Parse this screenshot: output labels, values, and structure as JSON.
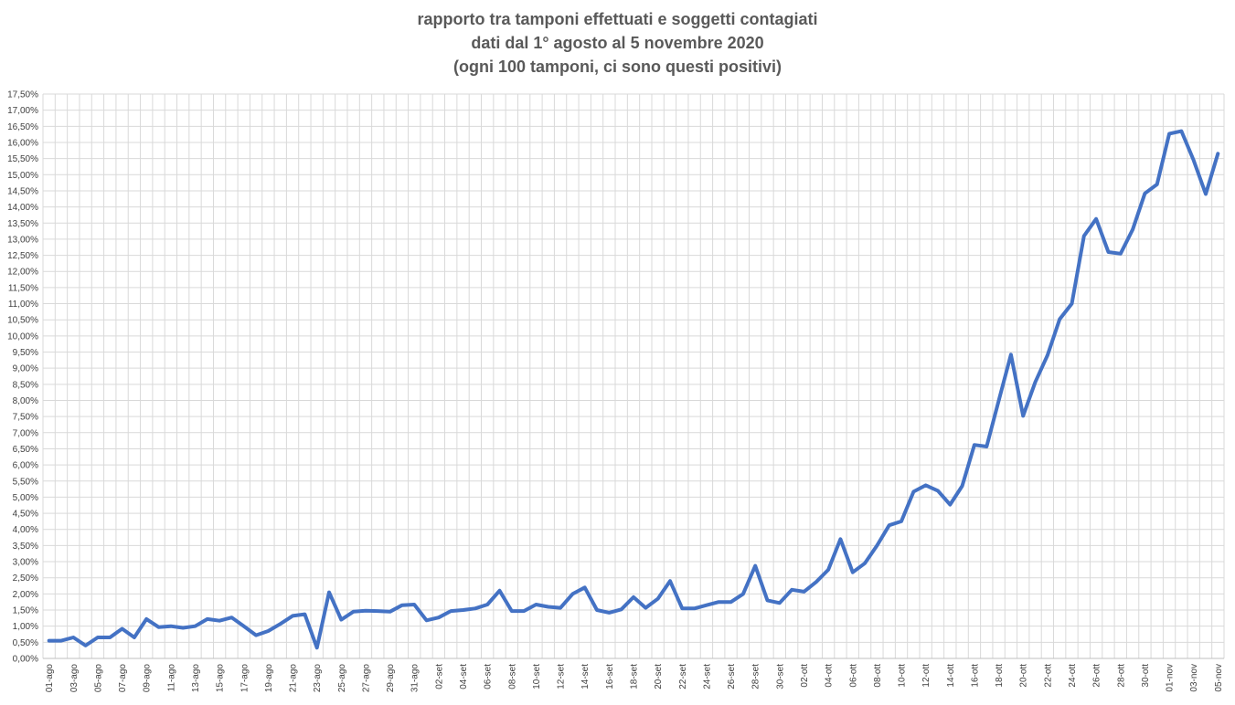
{
  "chart_data": {
    "type": "line",
    "title_lines": [
      "rapporto tra tamponi effettuati e soggetti contagiati",
      "dati dal 1° agosto al 5 novembre 2020",
      "(ogni 100 tamponi, ci sono questi positivi)"
    ],
    "xlabel": "",
    "ylabel": "",
    "ylim": [
      0,
      17.5
    ],
    "ytick_step": 0.5,
    "ytick_labels": [
      "0,00%",
      "0,50%",
      "1,00%",
      "1,50%",
      "2,00%",
      "2,50%",
      "3,00%",
      "3,50%",
      "4,00%",
      "4,50%",
      "5,00%",
      "5,50%",
      "6,00%",
      "6,50%",
      "7,00%",
      "7,50%",
      "8,00%",
      "8,50%",
      "9,00%",
      "9,50%",
      "10,00%",
      "10,50%",
      "11,00%",
      "11,50%",
      "12,00%",
      "12,50%",
      "13,00%",
      "13,50%",
      "14,00%",
      "14,50%",
      "15,00%",
      "15,50%",
      "16,00%",
      "16,50%",
      "17,00%",
      "17,50%"
    ],
    "grid": true,
    "line_color": "#4472C4",
    "x_labels": [
      "01-ago",
      "03-ago",
      "05-ago",
      "07-ago",
      "09-ago",
      "11-ago",
      "13-ago",
      "15-ago",
      "17-ago",
      "19-ago",
      "21-ago",
      "23-ago",
      "25-ago",
      "27-ago",
      "29-ago",
      "31-ago",
      "02-set",
      "04-set",
      "06-set",
      "08-set",
      "10-set",
      "12-set",
      "14-set",
      "16-set",
      "18-set",
      "20-set",
      "22-set",
      "24-set",
      "26-set",
      "28-set",
      "30-set",
      "02-ott",
      "04-ott",
      "06-ott",
      "08-ott",
      "10-ott",
      "12-ott",
      "14-ott",
      "16-ott",
      "18-ott",
      "20-ott",
      "22-ott",
      "24-ott",
      "26-ott",
      "28-ott",
      "30-ott",
      "01-nov",
      "03-nov",
      "05-nov"
    ],
    "values": [
      0.55,
      0.55,
      0.65,
      0.4,
      0.65,
      0.65,
      0.92,
      0.65,
      1.22,
      0.97,
      1.0,
      0.95,
      1.0,
      1.22,
      1.17,
      1.27,
      1.0,
      0.72,
      0.85,
      1.07,
      1.32,
      1.37,
      0.33,
      2.05,
      1.2,
      1.45,
      1.48,
      1.47,
      1.45,
      1.65,
      1.67,
      1.18,
      1.27,
      1.47,
      1.5,
      1.55,
      1.67,
      2.1,
      1.47,
      1.47,
      1.67,
      1.6,
      1.57,
      2.0,
      2.2,
      1.5,
      1.42,
      1.52,
      1.9,
      1.57,
      1.85,
      2.4,
      1.55,
      1.55,
      1.65,
      1.75,
      1.75,
      2.0,
      2.87,
      1.8,
      1.72,
      2.13,
      2.07,
      2.37,
      2.75,
      3.7,
      2.67,
      2.95,
      3.5,
      4.13,
      4.25,
      5.17,
      5.37,
      5.2,
      4.77,
      5.35,
      6.62,
      6.57,
      8.0,
      9.42,
      7.52,
      8.57,
      9.4,
      10.52,
      11.0,
      13.1,
      13.63,
      12.6,
      12.55,
      13.3,
      14.42,
      14.7,
      16.27,
      16.35,
      15.45,
      14.4,
      15.65
    ]
  }
}
